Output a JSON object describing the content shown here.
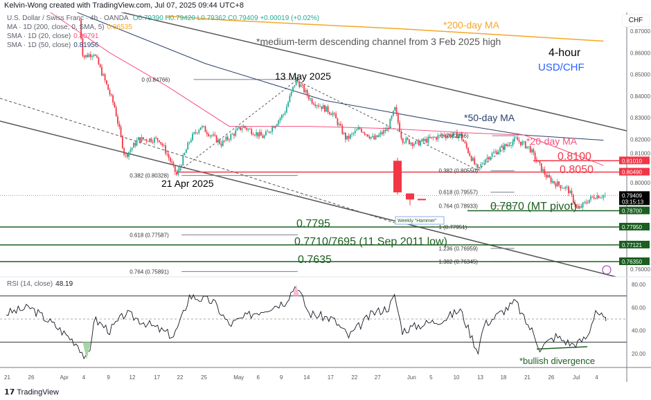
{
  "header": {
    "credit": "Kelvin-Wong created with TradingView.com, Jul 07, 2025 09:44 UTC+8",
    "symbol": "U.S. Dollar / Swiss Franc · 4h · OANDA",
    "ohlc": "O0.79390 H0.79420 L0.79362 C0.79409 +0.00019 (+0.02%)",
    "ma200_label": "MA · 1D (200, close, 0, SMA, 5)",
    "ma200_value": "0.86535",
    "sma20_label": "SMA · 1D (20, close)",
    "sma20_value": "0.80791",
    "sma50_label": "SMA · 1D (50, close)",
    "sma50_value": "0.81956",
    "currency": "CHF",
    "rsi_label": "RSI (14, close)",
    "rsi_value": "48.19"
  },
  "footer": {
    "brand": "TradingView"
  },
  "colors": {
    "up": "#22ab94",
    "down": "#f23645",
    "ma200": "#f5a623",
    "sma20": "#f7517f",
    "sma50": "#2a3f6b",
    "level_green": "#1b5e20",
    "level_red": "#f23645",
    "blue": "#2962ff"
  },
  "chart_data": {
    "type": "candlestick",
    "title": "4-hour USD/CHF",
    "subtitle_timeframe": "4-hour",
    "subtitle_pair": "USD/CHF",
    "ylim": [
      0.755,
      0.88
    ],
    "y_ticks": [
      "0.87000",
      "0.86000",
      "0.85000",
      "0.84000",
      "0.83000",
      "0.82000",
      "0.81000",
      "0.80000",
      "0.76000"
    ],
    "y_tick_values": [
      0.87,
      0.86,
      0.85,
      0.84,
      0.83,
      0.82,
      0.81,
      0.8,
      0.76
    ],
    "x_ticks": [
      {
        "label": "21",
        "t": 0
      },
      {
        "label": "26",
        "t": 3
      },
      {
        "label": "Apr",
        "t": 7
      },
      {
        "label": "4",
        "t": 9.8
      },
      {
        "label": "9",
        "t": 12.9
      },
      {
        "label": "12",
        "t": 15.7
      },
      {
        "label": "17",
        "t": 18.8
      },
      {
        "label": "22",
        "t": 21.7
      },
      {
        "label": "25",
        "t": 24.7
      },
      {
        "label": "May",
        "t": 28.8
      },
      {
        "label": "6",
        "t": 31.7
      },
      {
        "label": "9",
        "t": 34.6
      },
      {
        "label": "14",
        "t": 37.6
      },
      {
        "label": "17",
        "t": 40.6
      },
      {
        "label": "22",
        "t": 43.6
      },
      {
        "label": "27",
        "t": 46.5
      },
      {
        "label": "Jun",
        "t": 50.6
      },
      {
        "label": "5",
        "t": 53.4
      },
      {
        "label": "10",
        "t": 56.4
      },
      {
        "label": "13",
        "t": 59.4
      },
      {
        "label": "18",
        "t": 62.3
      },
      {
        "label": "21",
        "t": 65.3
      },
      {
        "label": "26",
        "t": 68.3
      },
      {
        "label": "Jul",
        "t": 71.4
      },
      {
        "label": "4",
        "t": 74.2
      }
    ],
    "price_path": [
      [
        9.2,
        0.875
      ],
      [
        9.65,
        0.858
      ],
      [
        11,
        0.86
      ],
      [
        12.3,
        0.848
      ],
      [
        13.6,
        0.835
      ],
      [
        14.9,
        0.812
      ],
      [
        16.6,
        0.82
      ],
      [
        19.2,
        0.82
      ],
      [
        20.1,
        0.814
      ],
      [
        21.4,
        0.8035
      ],
      [
        23.1,
        0.82
      ],
      [
        24.4,
        0.826
      ],
      [
        27,
        0.818
      ],
      [
        29.7,
        0.826
      ],
      [
        32.3,
        0.821
      ],
      [
        34.9,
        0.832
      ],
      [
        36.4,
        0.8477
      ],
      [
        38.3,
        0.838
      ],
      [
        41,
        0.832
      ],
      [
        42.7,
        0.82
      ],
      [
        44.4,
        0.825
      ],
      [
        46.2,
        0.82
      ],
      [
        47.9,
        0.825
      ],
      [
        48.8,
        0.834
      ],
      [
        49.7,
        0.82
      ],
      [
        51.4,
        0.818
      ],
      [
        53.1,
        0.82
      ],
      [
        54.9,
        0.822
      ],
      [
        57,
        0.822
      ],
      [
        59.2,
        0.8055
      ],
      [
        60.1,
        0.811
      ],
      [
        61.8,
        0.815
      ],
      [
        64,
        0.82
      ],
      [
        65.7,
        0.816
      ],
      [
        66.6,
        0.81
      ],
      [
        67.9,
        0.8025
      ],
      [
        68.8,
        0.8
      ],
      [
        70.5,
        0.797
      ],
      [
        71.8,
        0.7875
      ],
      [
        73.1,
        0.792
      ],
      [
        74,
        0.794
      ],
      [
        75.3,
        0.79409
      ]
    ],
    "ma200_path": [
      [
        20,
        0.877
      ],
      [
        28,
        0.875
      ],
      [
        50,
        0.871
      ],
      [
        75,
        0.8654
      ]
    ],
    "sma50_path": [
      [
        8,
        0.88
      ],
      [
        25,
        0.855
      ],
      [
        40,
        0.838
      ],
      [
        55,
        0.828
      ],
      [
        65,
        0.822
      ],
      [
        75,
        0.8196
      ]
    ],
    "sma20_path": [
      [
        5,
        0.88
      ],
      [
        13,
        0.86
      ],
      [
        20,
        0.845
      ],
      [
        28,
        0.826
      ],
      [
        38,
        0.826
      ],
      [
        48,
        0.825
      ],
      [
        58,
        0.823
      ],
      [
        65,
        0.822
      ],
      [
        70,
        0.815
      ],
      [
        75,
        0.8079
      ]
    ],
    "weekly_candles": [
      {
        "o": 0.8101,
        "c": 0.7955,
        "h": 0.8115,
        "l": 0.7945
      },
      {
        "o": 0.795,
        "c": 0.7922,
        "h": 0.795,
        "l": 0.7895
      },
      {
        "o": 0.7925,
        "c": 0.792,
        "h": 0.7925,
        "l": 0.792
      }
    ],
    "price_badges": [
      {
        "label": "0.81010",
        "value": 0.8101,
        "kind": "red"
      },
      {
        "label": "0.80490",
        "value": 0.8049,
        "kind": "red"
      },
      {
        "label": "0.79409",
        "value": 0.79409,
        "kind": "last",
        "countdown": "03:15:13"
      },
      {
        "label": "0.78700",
        "value": 0.787,
        "kind": "green"
      },
      {
        "label": "0.77950",
        "value": 0.7795,
        "kind": "green"
      },
      {
        "label": "0.77121",
        "value": 0.77121,
        "kind": "green"
      },
      {
        "label": "0.76350",
        "value": 0.7635,
        "kind": "green"
      }
    ],
    "fib_labels": [
      {
        "text": "0 (0.84766)",
        "value": 0.84766,
        "t0": 17,
        "t1": 36.6
      },
      {
        "text": "0.382 (0.80328)",
        "value": 0.80328,
        "t0": 15.5,
        "t1": 36.6
      },
      {
        "text": "0.618 (0.77587)",
        "value": 0.77587,
        "t0": 15.5,
        "t1": 36.6
      },
      {
        "text": "0.764 (0.75891)",
        "value": 0.75891,
        "t0": 15.5,
        "t1": 36.6
      },
      {
        "text": "0 (0.82166)",
        "value": 0.82166,
        "t0": 54.5,
        "t1": 63.8
      },
      {
        "text": "0.382 (0.80550)",
        "value": 0.8055,
        "t0": 54.3,
        "t1": 63.8
      },
      {
        "text": "0.618 (0.79557)",
        "value": 0.79557,
        "t0": 54.3,
        "t1": 63.8
      },
      {
        "text": "0.764 (0.78933)",
        "value": 0.78933,
        "t0": 54.3,
        "t1": 63.8
      },
      {
        "text": "1 (0.77951)",
        "value": 0.77951,
        "t0": 54.3,
        "t1": 63.8
      },
      {
        "text": "1.236 (0.76959)",
        "value": 0.76959,
        "t0": 54.3,
        "t1": 63.8
      },
      {
        "text": "1.382 (0.76345)",
        "value": 0.76345,
        "t0": 54.3,
        "t1": 63.8
      }
    ],
    "annotations": {
      "ma200": "*200-day MA",
      "channel": "*medium-term descending channel from 3 Feb 2025 high",
      "ma50": "*50-day MA",
      "ma20": "*20-day MA",
      "may13": "13 May 2025",
      "apr21": "21 Apr 2025",
      "l8100": "0.8100",
      "l8050": "0.8050",
      "l7870": "0.7870 (MT pivot)",
      "l7795": "0.7795",
      "l7710": "0.7710/7695 (11 Sep 2011 low)",
      "l7635": "0.7635",
      "hammer": "Weekly \"Hammer\"",
      "divergence": "*bullish divergence"
    },
    "rsi": {
      "ylim": [
        0,
        100
      ],
      "ticks": [
        "80.00",
        "60.00",
        "40.00",
        "20.00"
      ],
      "tick_values": [
        80,
        60,
        40,
        20
      ],
      "bands": [
        70,
        30
      ],
      "mid": 50,
      "path": [
        [
          0,
          55
        ],
        [
          3,
          60
        ],
        [
          6,
          45
        ],
        [
          9,
          28
        ],
        [
          10,
          15
        ],
        [
          10.5,
          22
        ],
        [
          11,
          50
        ],
        [
          13,
          40
        ],
        [
          15,
          55
        ],
        [
          18,
          45
        ],
        [
          21,
          35
        ],
        [
          22,
          50
        ],
        [
          23,
          70
        ],
        [
          26,
          65
        ],
        [
          28,
          45
        ],
        [
          31,
          55
        ],
        [
          35,
          65
        ],
        [
          36.4,
          80
        ],
        [
          38,
          55
        ],
        [
          41,
          50
        ],
        [
          43,
          35
        ],
        [
          46,
          55
        ],
        [
          48,
          60
        ],
        [
          48.8,
          70
        ],
        [
          49.7,
          40
        ],
        [
          52,
          45
        ],
        [
          55,
          50
        ],
        [
          57,
          58
        ],
        [
          59.2,
          22
        ],
        [
          60,
          45
        ],
        [
          62,
          55
        ],
        [
          64,
          65
        ],
        [
          65,
          50
        ],
        [
          66,
          40
        ],
        [
          67,
          25
        ],
        [
          69,
          35
        ],
        [
          71,
          28
        ],
        [
          72,
          30
        ],
        [
          73,
          35
        ],
        [
          74,
          58
        ],
        [
          75.3,
          48.19
        ]
      ]
    }
  }
}
